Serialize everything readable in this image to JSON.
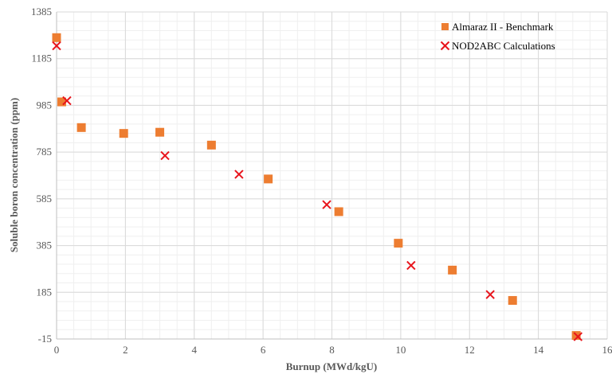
{
  "chart_data": {
    "type": "scatter",
    "title": "",
    "xlabel": "Burnup (MWd/kgU)",
    "ylabel": "Soluble boron concentration (ppm)",
    "xlim": [
      0,
      16
    ],
    "ylim": [
      -15,
      1385
    ],
    "xticks": [
      0,
      2,
      4,
      6,
      8,
      10,
      12,
      14,
      16
    ],
    "yticks": [
      -15,
      185,
      385,
      585,
      785,
      985,
      1185,
      1385
    ],
    "grid": true,
    "legend_position": "top-right",
    "series": [
      {
        "name": "Almaraz II - Benchmark",
        "marker": "square",
        "color": "#ed7d31",
        "points": [
          [
            0.0,
            1275
          ],
          [
            0.15,
            1000
          ],
          [
            0.72,
            890
          ],
          [
            1.95,
            865
          ],
          [
            3.0,
            870
          ],
          [
            4.5,
            815
          ],
          [
            6.15,
            670
          ],
          [
            8.2,
            530
          ],
          [
            9.93,
            395
          ],
          [
            11.5,
            280
          ],
          [
            13.25,
            150
          ],
          [
            15.1,
            0
          ]
        ]
      },
      {
        "name": "NOD2ABC Calculations",
        "marker": "x",
        "color": "#e8141c",
        "points": [
          [
            0.0,
            1240
          ],
          [
            0.3,
            1005
          ],
          [
            3.15,
            770
          ],
          [
            5.3,
            690
          ],
          [
            7.85,
            560
          ],
          [
            10.3,
            300
          ],
          [
            12.6,
            175
          ],
          [
            15.15,
            -5
          ]
        ]
      }
    ]
  }
}
